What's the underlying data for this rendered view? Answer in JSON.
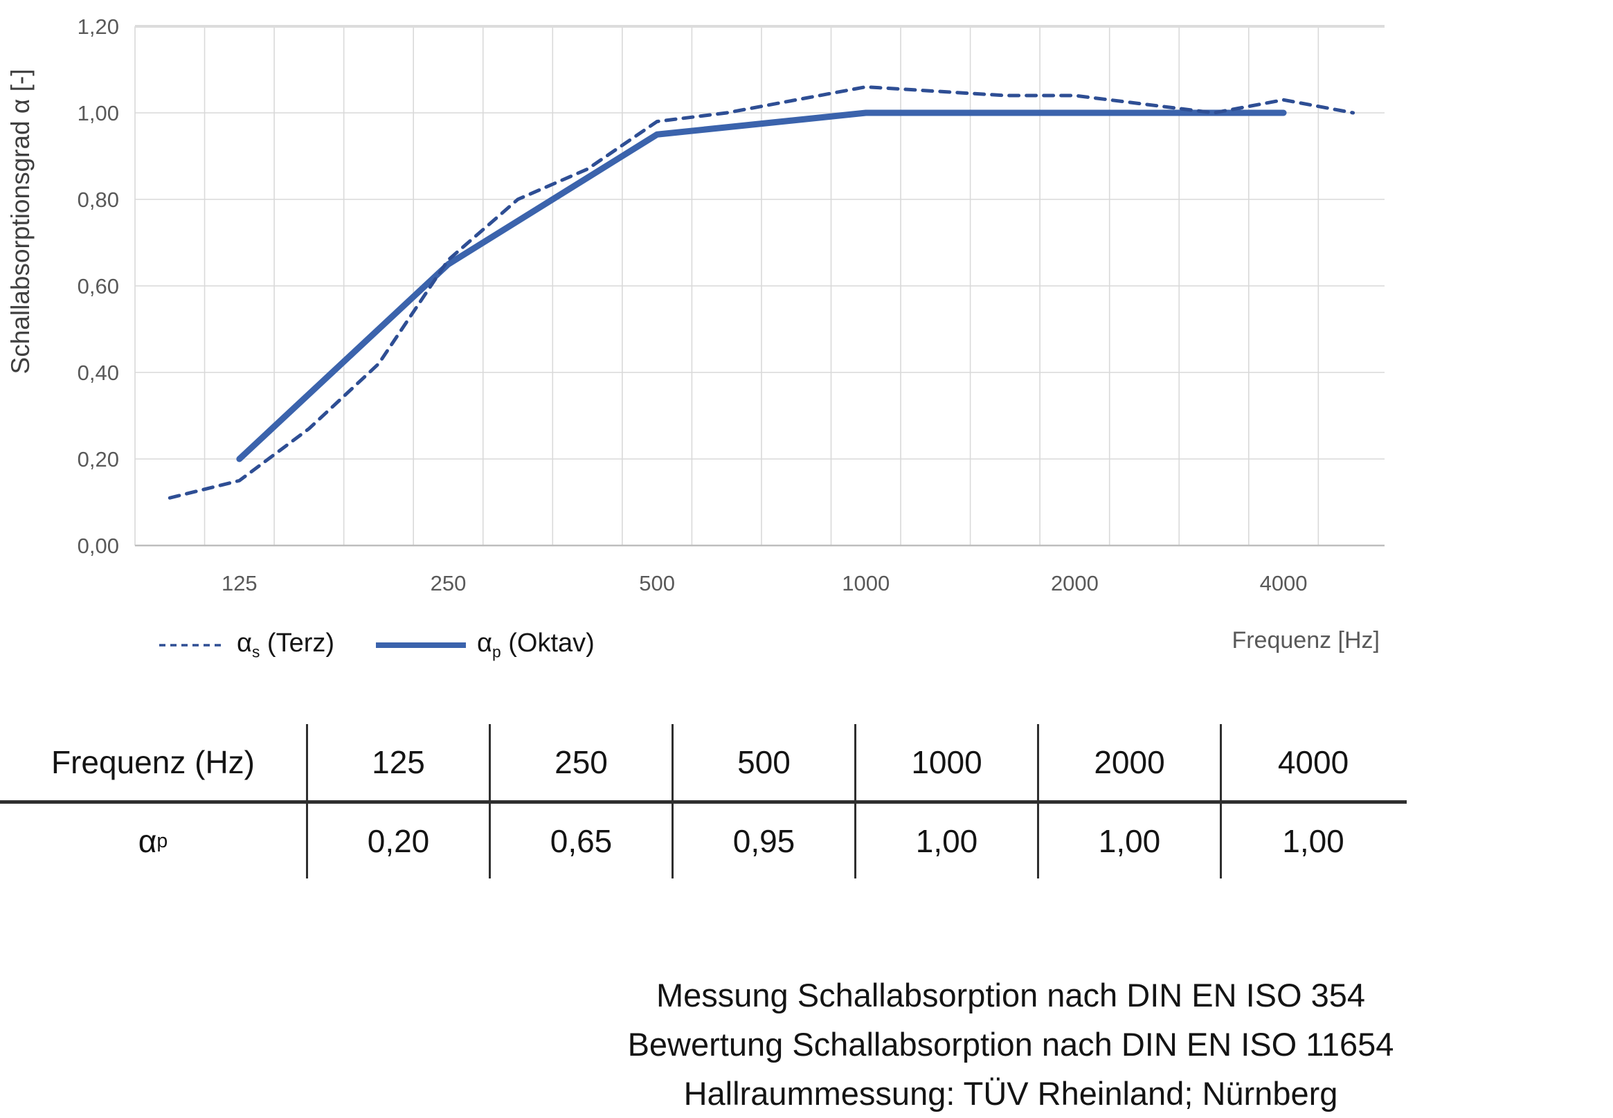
{
  "chart": {
    "ylabel": "Schallabsorptionsgrad α [-]",
    "xlabel": "Frequenz [Hz]",
    "y_ticks": [
      "0,00",
      "0,20",
      "0,40",
      "0,60",
      "0,80",
      "1,00",
      "1,20"
    ],
    "x_ticks": [
      "125",
      "250",
      "500",
      "1000",
      "2000",
      "4000"
    ],
    "legend": [
      {
        "symbol": "α",
        "sub": "s",
        "label": " (Terz)"
      },
      {
        "symbol": "α",
        "sub": "p",
        "label": " (Oktav)"
      }
    ]
  },
  "chart_data": {
    "type": "line",
    "title": "",
    "xlabel": "Frequenz [Hz]",
    "ylabel": "Schallabsorptionsgrad α [-]",
    "ylim": [
      0,
      1.2
    ],
    "grid": true,
    "legend_position": "bottom-left",
    "x_scale": "third-octave-bands",
    "categories": [
      100,
      125,
      160,
      200,
      250,
      315,
      400,
      500,
      630,
      800,
      1000,
      1250,
      1600,
      2000,
      2500,
      3150,
      4000,
      5000
    ],
    "series": [
      {
        "name": "αs (Terz)",
        "style": "dashed",
        "values": [
          0.11,
          0.15,
          0.27,
          0.42,
          0.66,
          0.8,
          0.87,
          0.98,
          1.0,
          1.03,
          1.06,
          1.05,
          1.04,
          1.04,
          1.02,
          1.0,
          1.03,
          1.0
        ]
      },
      {
        "name": "αp (Oktav)",
        "style": "solid",
        "x": [
          125,
          250,
          500,
          1000,
          2000,
          4000
        ],
        "values": [
          0.2,
          0.65,
          0.95,
          1.0,
          1.0,
          1.0
        ]
      }
    ]
  },
  "table": {
    "header": [
      "Frequenz (Hz)",
      "125",
      "250",
      "500",
      "1000",
      "2000",
      "4000"
    ],
    "row_label": {
      "symbol": "α",
      "sub": "p"
    },
    "values": [
      "0,20",
      "0,65",
      "0,95",
      "1,00",
      "1,00",
      "1,00"
    ]
  },
  "footer": {
    "line1": "Messung Schallabsorption nach DIN EN ISO 354",
    "line2": "Bewertung Schallabsorption nach DIN EN ISO 11654",
    "line3": "Hallraummessung: TÜV Rheinland; Nürnberg"
  },
  "colors": {
    "solid_line": "#3B63AC",
    "dashed_line": "#2E4E94",
    "grid": "#D9D9D9",
    "grid_top": "#DCDCDC",
    "axis": "#BDBDBD",
    "tick_text": "#595959",
    "text": "#141414"
  }
}
